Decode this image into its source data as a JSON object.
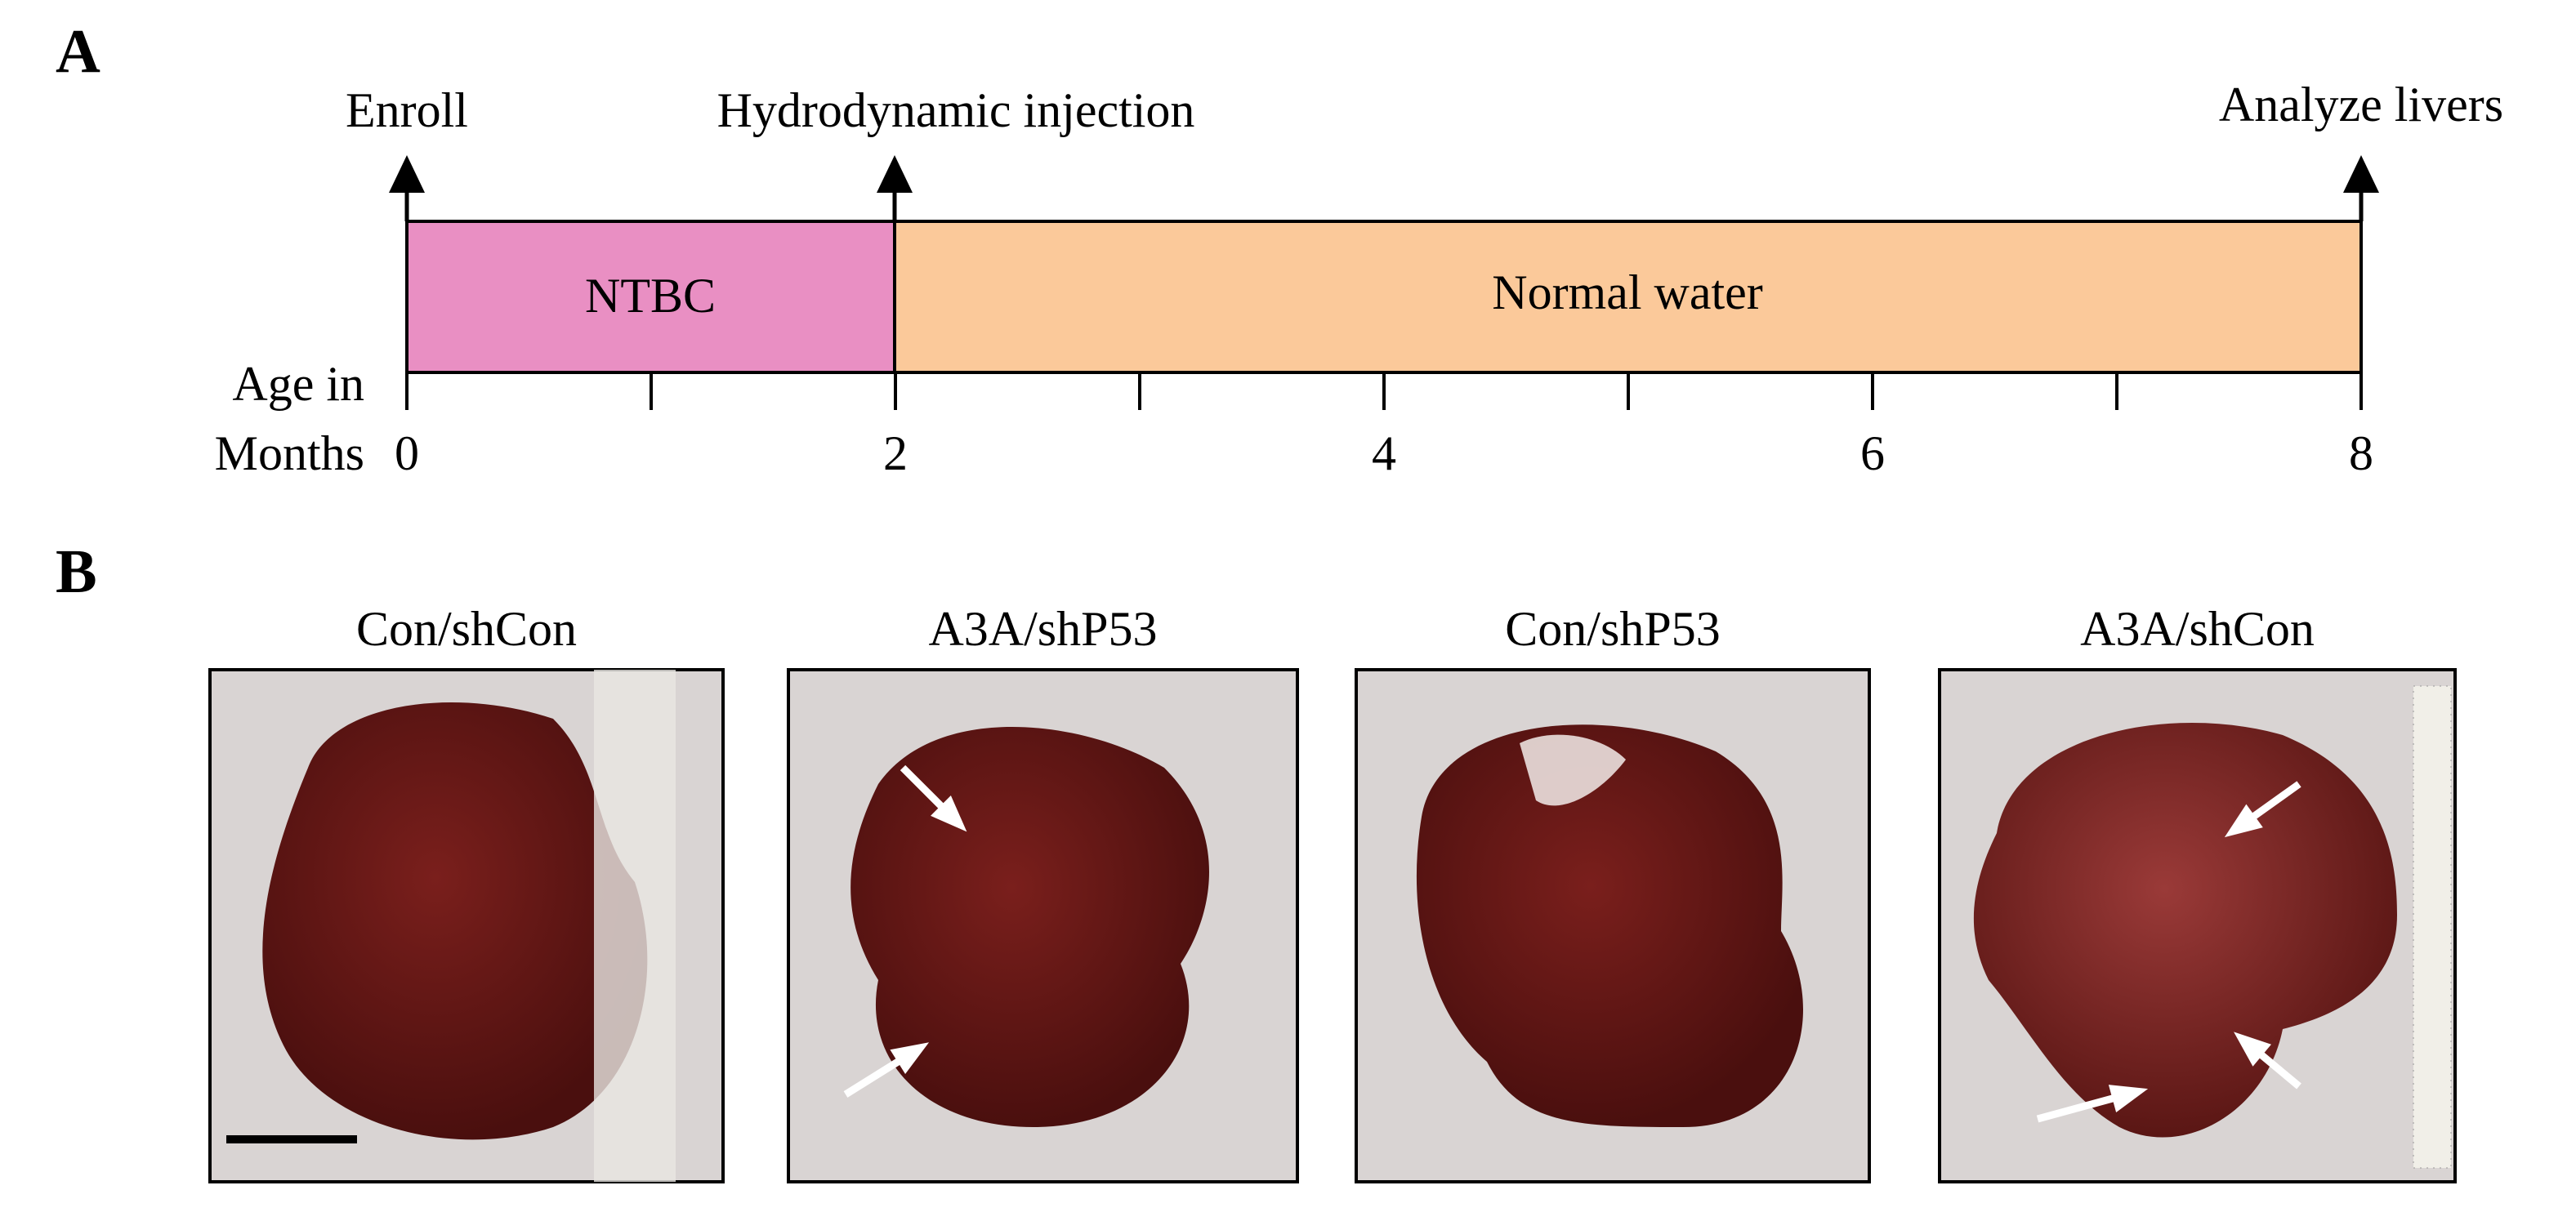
{
  "panel_a": {
    "label": "A",
    "events": [
      "Enroll",
      "Hydrodynamic injection",
      "Analyze livers"
    ],
    "phases": [
      "NTBC",
      "Normal water"
    ],
    "axis": {
      "title_lines": [
        "Age in",
        "Months"
      ],
      "xlim": [
        0,
        8
      ],
      "ticks": [
        0,
        2,
        4,
        6,
        8
      ]
    }
  },
  "panel_b": {
    "label": "B",
    "photos": [
      {
        "title": "Con/shCon"
      },
      {
        "title": "A3A/shP53"
      },
      {
        "title": "Con/shP53"
      },
      {
        "title": "A3A/shCon"
      }
    ]
  }
}
